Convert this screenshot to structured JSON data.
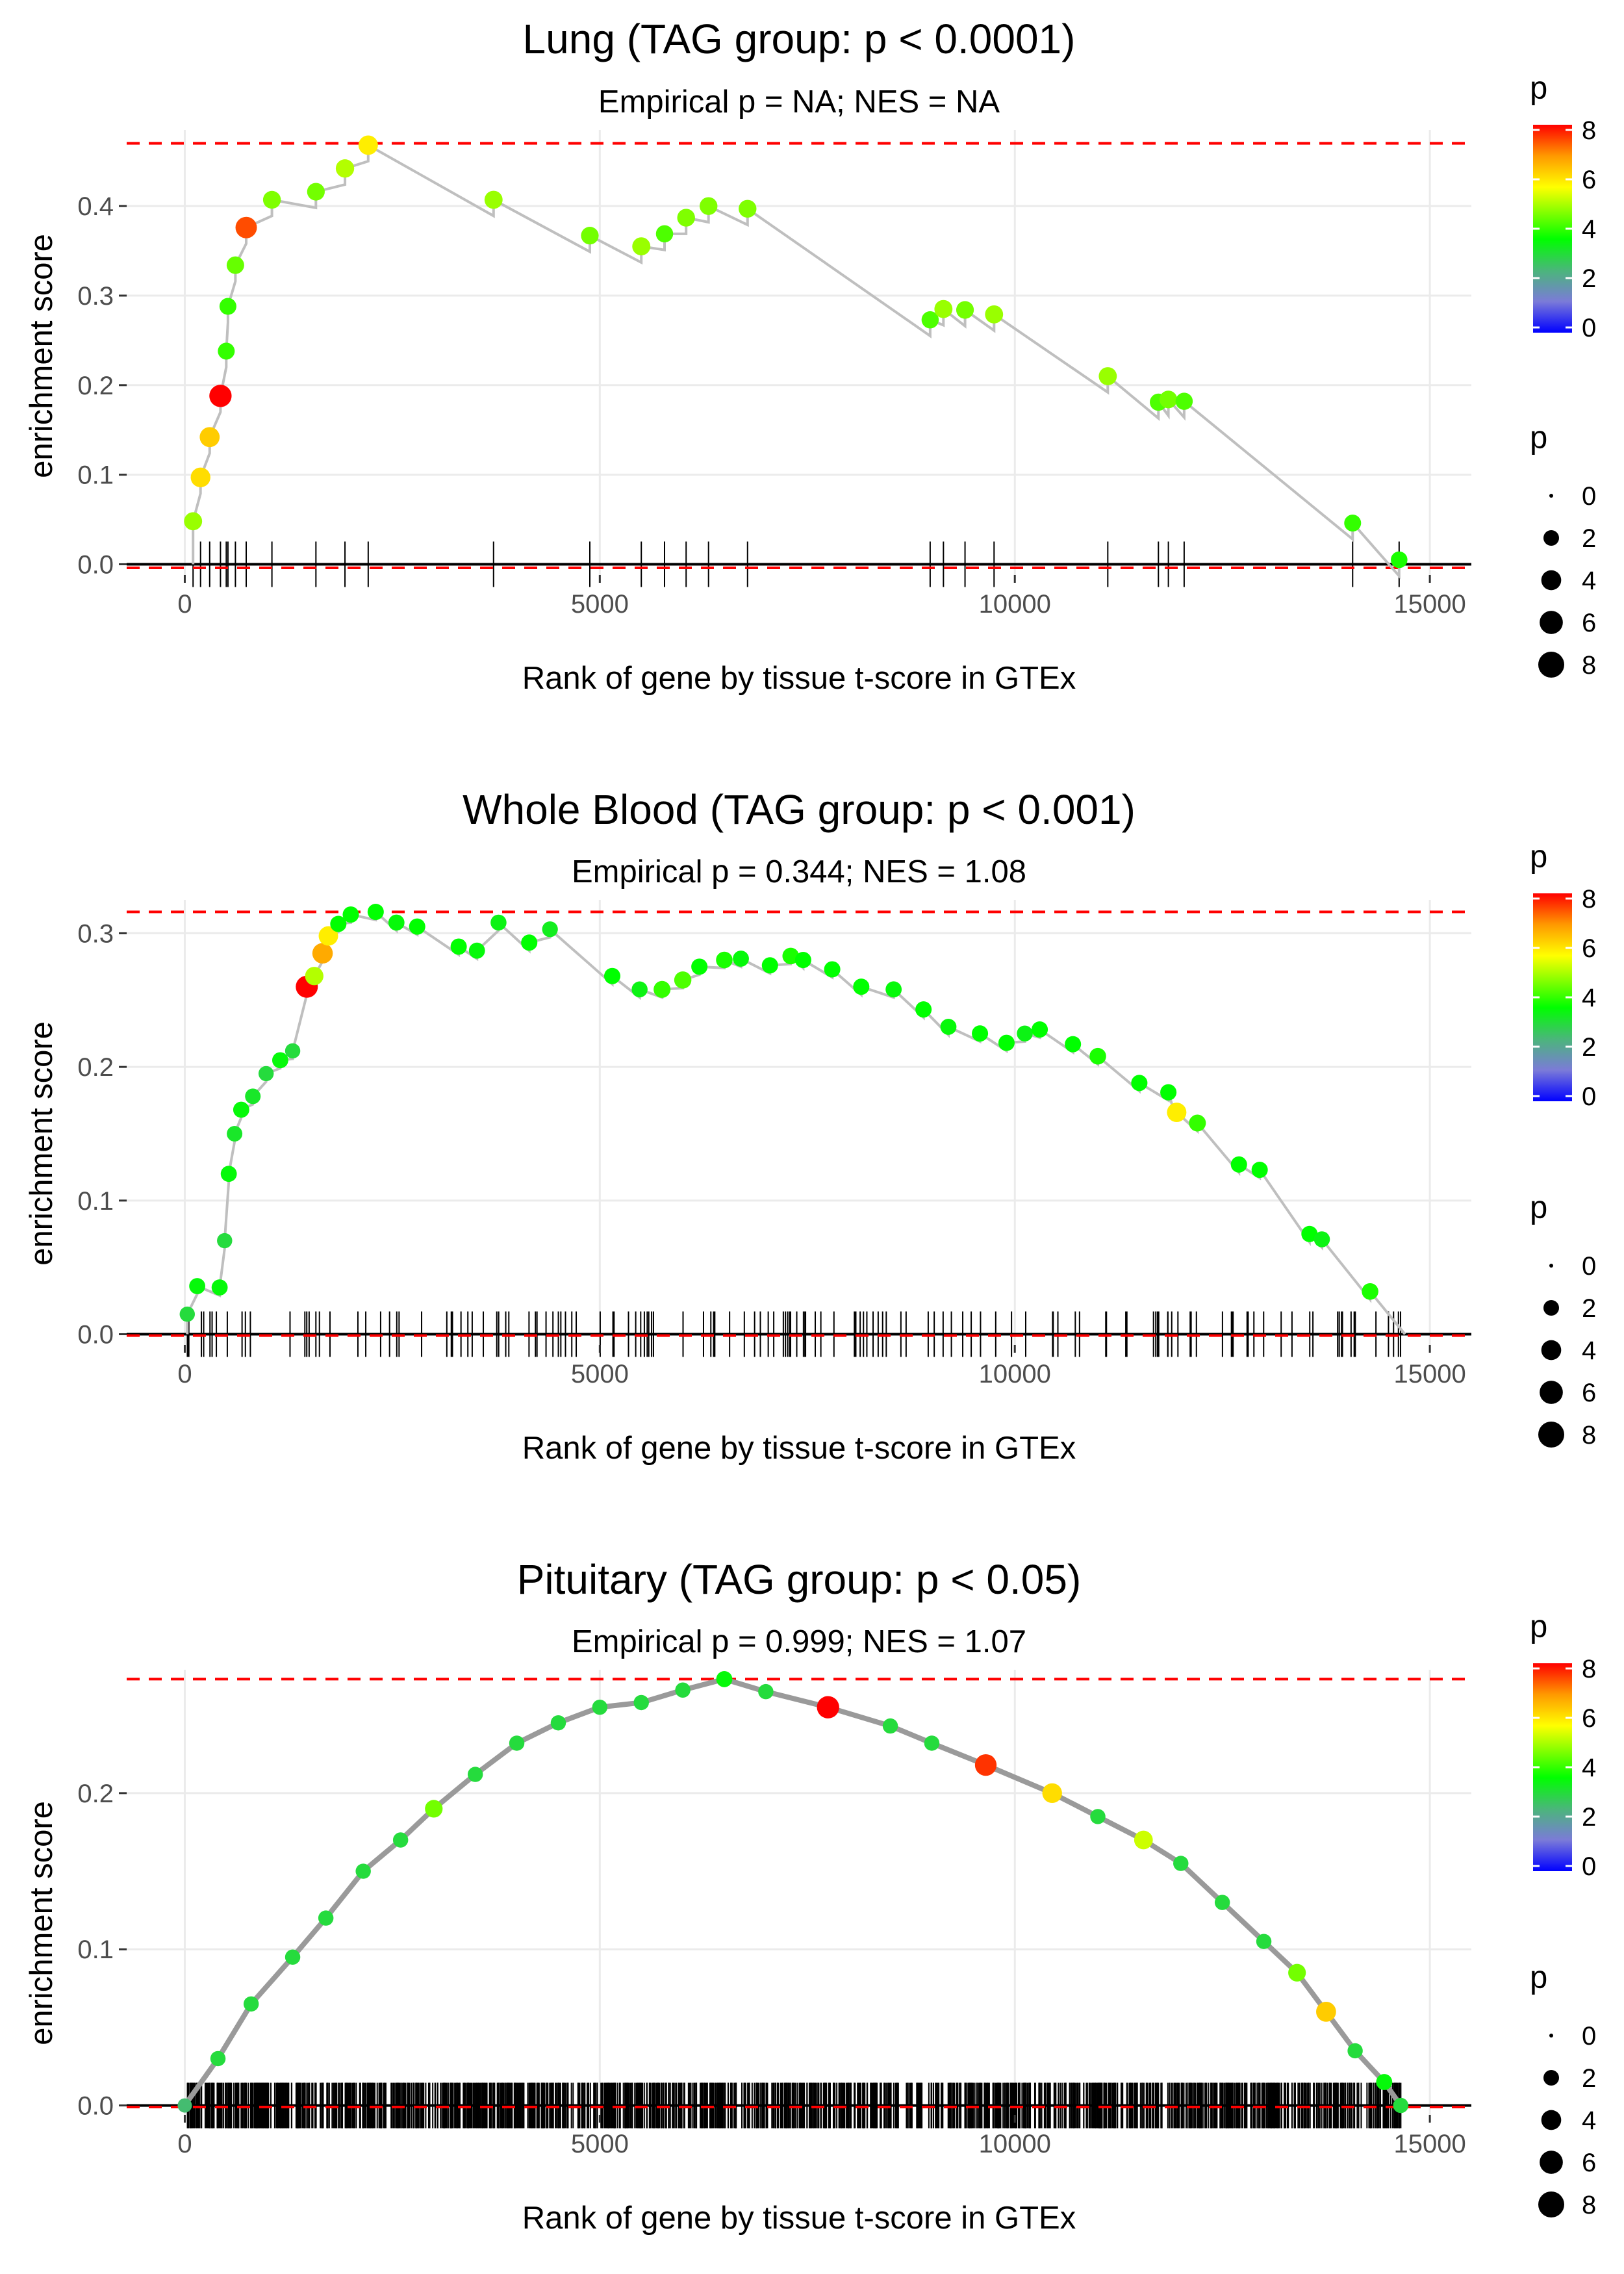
{
  "chart_data": [
    {
      "type": "line",
      "title": "Lung (TAG group: p < 0.0001)",
      "subtitle": "Empirical p = NA; NES = NA",
      "xlabel": "Rank of gene by tissue t-score in GTEx",
      "ylabel": "enrichment score",
      "xlim": [
        -700,
        15500
      ],
      "ylim": [
        -0.012,
        0.485
      ],
      "x_ticks": [
        0,
        5000,
        10000,
        15000
      ],
      "y_ticks": [
        0.0,
        0.1,
        0.2,
        0.3,
        0.4
      ],
      "y_tick_labels": [
        "0.0",
        "0.1",
        "0.2",
        "0.3",
        "0.4"
      ],
      "hlines": {
        "max_es": 0.47,
        "min_es": -0.004
      },
      "points": [
        [
          100,
          0.048,
          4.8
        ],
        [
          190,
          0.097,
          6.0
        ],
        [
          300,
          0.142,
          6.2
        ],
        [
          430,
          0.188,
          8.2
        ],
        [
          500,
          0.238,
          4.0
        ],
        [
          520,
          0.288,
          4.0
        ],
        [
          610,
          0.334,
          4.4
        ],
        [
          740,
          0.376,
          7.4
        ],
        [
          1050,
          0.407,
          4.6
        ],
        [
          1580,
          0.416,
          4.5
        ],
        [
          1930,
          0.442,
          5.0
        ],
        [
          2210,
          0.468,
          5.8
        ],
        [
          3720,
          0.407,
          4.8
        ],
        [
          4880,
          0.367,
          4.5
        ],
        [
          5500,
          0.355,
          4.8
        ],
        [
          5780,
          0.369,
          4.2
        ],
        [
          6040,
          0.387,
          4.6
        ],
        [
          6310,
          0.4,
          4.6
        ],
        [
          6780,
          0.397,
          4.6
        ],
        [
          8980,
          0.273,
          4.2
        ],
        [
          9140,
          0.285,
          4.8
        ],
        [
          9400,
          0.284,
          4.5
        ],
        [
          9750,
          0.279,
          4.8
        ],
        [
          11120,
          0.21,
          4.8
        ],
        [
          11730,
          0.181,
          4.2
        ],
        [
          11850,
          0.184,
          4.5
        ],
        [
          12040,
          0.182,
          4.2
        ],
        [
          14070,
          0.046,
          4.0
        ],
        [
          14630,
          0.005,
          3.8
        ]
      ],
      "legend": {
        "color_title": "p",
        "color_ticks": [
          0,
          2,
          4,
          6,
          8
        ],
        "size_title": "p",
        "size_values": [
          0,
          2,
          4,
          6,
          8
        ]
      }
    },
    {
      "type": "line",
      "title": "Whole Blood (TAG group: p < 0.001)",
      "subtitle": "Empirical p = 0.344; NES = 1.08",
      "xlabel": "Rank of gene by tissue t-score in GTEx",
      "ylabel": "enrichment score",
      "xlim": [
        -700,
        15500
      ],
      "ylim": [
        -0.008,
        0.325
      ],
      "x_ticks": [
        0,
        5000,
        10000,
        15000
      ],
      "y_ticks": [
        0.0,
        0.1,
        0.2,
        0.3
      ],
      "y_tick_labels": [
        "0.0",
        "0.1",
        "0.2",
        "0.3"
      ],
      "hlines": {
        "max_es": 0.316,
        "min_es": -0.001
      },
      "points": [
        [
          30,
          0.015,
          3.0
        ],
        [
          150,
          0.036,
          3.5
        ],
        [
          420,
          0.035,
          3.5
        ],
        [
          480,
          0.07,
          3.0
        ],
        [
          530,
          0.12,
          3.5
        ],
        [
          600,
          0.15,
          3.2
        ],
        [
          680,
          0.168,
          3.5
        ],
        [
          820,
          0.178,
          3.2
        ],
        [
          980,
          0.195,
          3.0
        ],
        [
          1150,
          0.205,
          3.5
        ],
        [
          1300,
          0.212,
          3.0
        ],
        [
          1470,
          0.26,
          8.0
        ],
        [
          1560,
          0.268,
          5.0
        ],
        [
          1660,
          0.285,
          6.6
        ],
        [
          1730,
          0.298,
          5.8
        ],
        [
          1850,
          0.307,
          3.6
        ],
        [
          2000,
          0.314,
          3.6
        ],
        [
          2300,
          0.316,
          3.6
        ],
        [
          2550,
          0.308,
          3.5
        ],
        [
          2800,
          0.305,
          3.6
        ],
        [
          3300,
          0.29,
          3.6
        ],
        [
          3520,
          0.287,
          3.5
        ],
        [
          3780,
          0.308,
          3.4
        ],
        [
          4150,
          0.293,
          3.6
        ],
        [
          4400,
          0.303,
          3.3
        ],
        [
          5150,
          0.268,
          3.6
        ],
        [
          5480,
          0.258,
          3.4
        ],
        [
          5750,
          0.258,
          4.0
        ],
        [
          6000,
          0.265,
          4.2
        ],
        [
          6200,
          0.275,
          3.6
        ],
        [
          6500,
          0.28,
          3.8
        ],
        [
          6700,
          0.281,
          3.5
        ],
        [
          7050,
          0.276,
          3.6
        ],
        [
          7300,
          0.283,
          3.8
        ],
        [
          7450,
          0.28,
          3.6
        ],
        [
          7800,
          0.273,
          3.6
        ],
        [
          8150,
          0.26,
          3.6
        ],
        [
          8540,
          0.258,
          3.5
        ],
        [
          8900,
          0.243,
          3.6
        ],
        [
          9200,
          0.23,
          3.5
        ],
        [
          9580,
          0.225,
          3.6
        ],
        [
          9900,
          0.218,
          3.6
        ],
        [
          10120,
          0.225,
          3.4
        ],
        [
          10300,
          0.228,
          3.6
        ],
        [
          10700,
          0.217,
          3.6
        ],
        [
          11000,
          0.208,
          3.8
        ],
        [
          11500,
          0.188,
          3.6
        ],
        [
          11850,
          0.181,
          3.6
        ],
        [
          11950,
          0.166,
          5.8
        ],
        [
          12200,
          0.158,
          4.0
        ],
        [
          12700,
          0.127,
          3.6
        ],
        [
          12950,
          0.123,
          3.6
        ],
        [
          13550,
          0.075,
          3.6
        ],
        [
          13700,
          0.071,
          3.4
        ],
        [
          14280,
          0.032,
          3.8
        ]
      ],
      "legend": {
        "color_title": "p",
        "color_ticks": [
          0,
          2,
          4,
          6,
          8
        ],
        "size_title": "p",
        "size_values": [
          0,
          2,
          4,
          6,
          8
        ]
      }
    },
    {
      "type": "line",
      "title": "Pituitary (TAG group: p < 0.05)",
      "subtitle": "Empirical p = 0.999; NES = 1.07",
      "xlabel": "Rank of gene by tissue t-score in GTEx",
      "ylabel": "enrichment score",
      "xlim": [
        -700,
        15500
      ],
      "ylim": [
        -0.006,
        0.279
      ],
      "x_ticks": [
        0,
        5000,
        10000,
        15000
      ],
      "y_ticks": [
        0.0,
        0.1,
        0.2
      ],
      "y_tick_labels": [
        "0.0",
        "0.1",
        "0.2"
      ],
      "hlines": {
        "max_es": 0.273,
        "min_es": -0.001
      },
      "points": [
        [
          0,
          0.0,
          2.5
        ],
        [
          400,
          0.03,
          3.0
        ],
        [
          800,
          0.065,
          3.0
        ],
        [
          1300,
          0.095,
          3.0
        ],
        [
          1700,
          0.12,
          3.0
        ],
        [
          2150,
          0.15,
          3.0
        ],
        [
          2600,
          0.17,
          3.0
        ],
        [
          3000,
          0.19,
          4.5
        ],
        [
          3500,
          0.212,
          3.0
        ],
        [
          4000,
          0.232,
          3.0
        ],
        [
          4500,
          0.245,
          3.0
        ],
        [
          5000,
          0.255,
          3.0
        ],
        [
          5500,
          0.258,
          3.0
        ],
        [
          6000,
          0.266,
          3.0
        ],
        [
          6500,
          0.273,
          3.5
        ],
        [
          7000,
          0.265,
          3.0
        ],
        [
          7750,
          0.255,
          8.2
        ],
        [
          8500,
          0.243,
          3.0
        ],
        [
          9000,
          0.232,
          3.0
        ],
        [
          9650,
          0.218,
          7.6
        ],
        [
          10450,
          0.2,
          6.0
        ],
        [
          11000,
          0.185,
          3.0
        ],
        [
          11550,
          0.17,
          5.2
        ],
        [
          12000,
          0.155,
          3.0
        ],
        [
          12500,
          0.13,
          3.0
        ],
        [
          13000,
          0.105,
          3.0
        ],
        [
          13400,
          0.085,
          4.5
        ],
        [
          13750,
          0.06,
          6.2
        ],
        [
          14100,
          0.035,
          3.0
        ],
        [
          14450,
          0.015,
          3.5
        ],
        [
          14650,
          0.0,
          3.0
        ]
      ],
      "legend": {
        "color_title": "p",
        "color_ticks": [
          0,
          2,
          4,
          6,
          8
        ],
        "size_title": "p",
        "size_values": [
          0,
          2,
          4,
          6,
          8
        ]
      }
    }
  ]
}
